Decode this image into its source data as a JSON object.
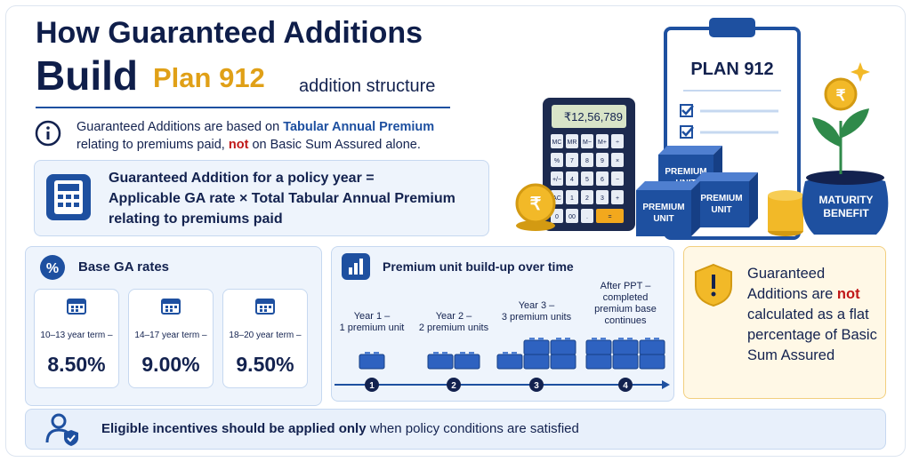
{
  "header": {
    "title_line1": "How Guaranteed Additions",
    "title_build": "Build",
    "title_plan": "Plan 912",
    "title_suffix": "addition structure"
  },
  "info": {
    "segments": [
      "Guaranteed Additions are based on",
      "Tabular Annual Premium",
      "relating to premiums paid,",
      "not",
      "on Basic Sum Assured alone."
    ]
  },
  "formula": {
    "lines": [
      "Guaranteed Addition for a policy year =",
      "Applicable GA rate × Total Tabular Annual Premium",
      "relating to premiums paid"
    ]
  },
  "illustration": {
    "display": "₹12,56,789",
    "keys": [
      "MC",
      "MR",
      "M−",
      "M+",
      "÷",
      "%",
      "7",
      "8",
      "9",
      "×",
      "+/−",
      "4",
      "5",
      "6",
      "−",
      "AC",
      "1",
      "2",
      "3",
      "+",
      "0",
      "00",
      ".",
      "="
    ],
    "clipboard": "PLAN 912",
    "boxes": [
      "PREMIUM UNIT",
      "PREMIUM UNIT",
      "PREMIUM UNIT"
    ],
    "pot": "MATURITY BENEFIT"
  },
  "rates": {
    "title": "Base GA rates",
    "items": [
      {
        "term": "10–13 year term –",
        "rate": "8.50%"
      },
      {
        "term": "14–17 year term –",
        "rate": "9.00%"
      },
      {
        "term": "18–20 year term –",
        "rate": "9.50%"
      }
    ]
  },
  "buildup": {
    "title": "Premium unit build-up over time",
    "steps": [
      {
        "lines": [
          "Year 1 –",
          "1 premium unit"
        ],
        "number": "1"
      },
      {
        "lines": [
          "Year 2 –",
          "2 premium units"
        ],
        "number": "2"
      },
      {
        "lines": [
          "Year 3 –",
          "3 premium units"
        ],
        "number": "3"
      },
      {
        "lines": [
          "After PPT –",
          "completed",
          "premium base",
          "continues"
        ],
        "number": "4"
      }
    ]
  },
  "warning": {
    "segments": [
      "Guaranteed Additions are",
      "not",
      "calculated as a flat percentage of Basic Sum Assured"
    ]
  },
  "footer": {
    "bold": "Eligible incentives should be applied only",
    "rest": "when policy conditions are satisfied"
  }
}
